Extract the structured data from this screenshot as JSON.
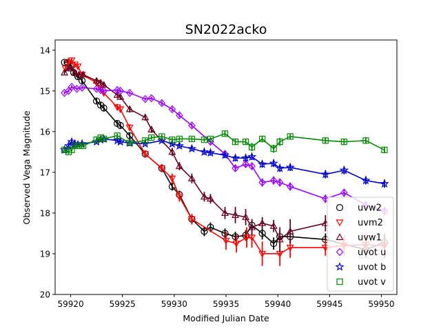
{
  "chart_data": {
    "type": "line",
    "title": "SN2022acko",
    "xlabel": "Modified Julian Date",
    "ylabel": "Observed Vega Magnitude",
    "xlim": [
      59918.5,
      59951.5
    ],
    "ylim": [
      20,
      13.75
    ],
    "y_inverted": true,
    "xticks": [
      59920,
      59925,
      59930,
      59935,
      59940,
      59945,
      59950
    ],
    "yticks": [
      14,
      15,
      16,
      17,
      18,
      19,
      20
    ],
    "legend_position": "lower-right",
    "series": [
      {
        "name": "uvw2",
        "color": "#000000",
        "marker": "circle-open",
        "x": [
          59919.4,
          59919.7,
          59920.0,
          59920.3,
          59920.7,
          59921.1,
          59922.5,
          59922.9,
          59923.2,
          59924.5,
          59924.8,
          59925.7,
          59927.2,
          59928.8,
          59929.8,
          59930.5,
          59931.7,
          59932.9,
          59933.5,
          59934.9,
          59935.9,
          59936.9,
          59937.5,
          59938.5,
          59939.6,
          59940.2,
          59941.2,
          59944.6,
          59948.5,
          59950.3
        ],
        "y": [
          14.3,
          14.3,
          14.4,
          14.55,
          14.65,
          14.75,
          15.25,
          15.35,
          15.42,
          15.8,
          15.85,
          16.1,
          16.55,
          16.9,
          17.35,
          17.55,
          18.15,
          18.45,
          18.35,
          18.5,
          18.58,
          18.55,
          18.3,
          18.5,
          18.75,
          18.58,
          18.58,
          18.65,
          18.9,
          18.72
        ],
        "err": [
          0.05,
          0.05,
          0.06,
          0.06,
          0.06,
          0.07,
          0.08,
          0.08,
          0.08,
          0.08,
          0.08,
          0.08,
          0.08,
          0.09,
          0.1,
          0.1,
          0.1,
          0.12,
          0.12,
          0.12,
          0.12,
          0.13,
          0.15,
          0.15,
          0.15,
          0.15,
          0.15,
          0.15,
          0.2,
          0.2
        ]
      },
      {
        "name": "uvm2",
        "color": "#ff0000",
        "marker": "triangle-down-open",
        "x": [
          59919.5,
          59919.8,
          59920.1,
          59920.4,
          59920.7,
          59921.1,
          59922.5,
          59922.9,
          59923.2,
          59924.5,
          59924.8,
          59925.7,
          59927.2,
          59928.8,
          59929.8,
          59930.5,
          59931.7,
          59935.0,
          59936.0,
          59937.0,
          59937.5,
          59938.5,
          59940.2,
          59941.2,
          59944.6,
          59946.4,
          59948.5,
          59950.3
        ],
        "y": [
          14.45,
          14.3,
          14.25,
          14.35,
          14.4,
          14.6,
          14.8,
          14.95,
          15.05,
          15.4,
          15.45,
          15.9,
          16.55,
          16.9,
          17.15,
          17.6,
          18.15,
          18.68,
          18.75,
          18.6,
          18.6,
          19.0,
          19.0,
          18.85,
          18.85,
          18.8,
          18.78,
          18.8
        ],
        "err": [
          0.05,
          0.05,
          0.05,
          0.05,
          0.06,
          0.06,
          0.07,
          0.07,
          0.07,
          0.08,
          0.08,
          0.08,
          0.09,
          0.1,
          0.12,
          0.12,
          0.13,
          0.22,
          0.22,
          0.25,
          0.25,
          0.3,
          0.3,
          0.25,
          0.2,
          0.25,
          0.25,
          0.3
        ]
      },
      {
        "name": "uvw1",
        "color": "#660022",
        "marker": "triangle-up-open",
        "x": [
          59919.4,
          59919.8,
          59920.1,
          59920.4,
          59920.8,
          59921.2,
          59922.5,
          59922.9,
          59923.2,
          59924.5,
          59924.8,
          59925.7,
          59927.2,
          59927.8,
          59929.8,
          59930.5,
          59931.7,
          59932.9,
          59933.5,
          59934.9,
          59935.9,
          59936.9,
          59937.5,
          59938.5,
          59939.6,
          59940.2,
          59941.2,
          59944.6
        ],
        "y": [
          14.55,
          14.45,
          14.45,
          14.55,
          14.6,
          14.6,
          14.75,
          14.8,
          14.85,
          15.1,
          15.15,
          15.45,
          15.65,
          15.95,
          16.5,
          16.85,
          17.15,
          17.6,
          17.65,
          18.0,
          18.05,
          18.1,
          18.35,
          18.25,
          18.32,
          18.65,
          18.45,
          18.25
        ],
        "err": [
          0.05,
          0.05,
          0.05,
          0.05,
          0.05,
          0.06,
          0.06,
          0.06,
          0.06,
          0.07,
          0.07,
          0.08,
          0.08,
          0.08,
          0.1,
          0.1,
          0.12,
          0.12,
          0.12,
          0.15,
          0.2,
          0.2,
          0.2,
          0.15,
          0.15,
          0.3,
          0.3,
          0.2
        ]
      },
      {
        "name": "uvot u",
        "color": "#9900ff",
        "marker": "diamond-open",
        "x": [
          59919.4,
          59919.8,
          59920.1,
          59920.6,
          59921.1,
          59922.5,
          59922.9,
          59923.2,
          59924.5,
          59924.8,
          59925.7,
          59927.2,
          59927.8,
          59928.8,
          59929.8,
          59930.5,
          59931.7,
          59933.5,
          59934.9,
          59935.9,
          59936.9,
          59937.5,
          59938.5,
          59939.6,
          59940.2,
          59941.2,
          59944.6,
          59946.4,
          59948.5,
          59950.3
        ],
        "y": [
          15.05,
          15.0,
          14.9,
          14.95,
          14.92,
          14.95,
          14.98,
          15.0,
          14.98,
          15.0,
          15.05,
          15.2,
          15.18,
          15.3,
          15.45,
          15.6,
          15.85,
          16.25,
          16.55,
          16.9,
          16.8,
          16.85,
          17.25,
          17.2,
          17.25,
          17.35,
          17.65,
          17.5,
          17.8,
          17.95
        ],
        "err": [
          0.04,
          0.04,
          0.04,
          0.04,
          0.04,
          0.04,
          0.04,
          0.04,
          0.04,
          0.04,
          0.04,
          0.04,
          0.04,
          0.05,
          0.05,
          0.05,
          0.05,
          0.06,
          0.07,
          0.08,
          0.08,
          0.09,
          0.1,
          0.1,
          0.1,
          0.1,
          0.1,
          0.1,
          0.1,
          0.1
        ]
      },
      {
        "name": "uvot b",
        "color": "#0000cc",
        "marker": "star-open",
        "x": [
          59919.4,
          59919.8,
          59920.1,
          59920.4,
          59920.7,
          59921.1,
          59922.5,
          59922.9,
          59923.2,
          59924.5,
          59924.8,
          59925.7,
          59927.2,
          59928.8,
          59929.8,
          59930.5,
          59931.7,
          59932.9,
          59933.5,
          59934.9,
          59935.9,
          59936.9,
          59937.5,
          59938.5,
          59939.6,
          59940.2,
          59941.2,
          59944.6,
          59946.4,
          59948.5,
          59950.3
        ],
        "y": [
          16.45,
          16.35,
          16.25,
          16.3,
          16.32,
          16.3,
          16.25,
          16.2,
          16.18,
          16.22,
          16.25,
          16.28,
          16.3,
          16.22,
          16.3,
          16.35,
          16.42,
          16.5,
          16.52,
          16.58,
          16.65,
          16.65,
          16.62,
          16.8,
          16.78,
          16.9,
          16.88,
          17.05,
          16.95,
          17.2,
          17.28
        ],
        "err": [
          0.05,
          0.05,
          0.05,
          0.05,
          0.05,
          0.05,
          0.05,
          0.05,
          0.05,
          0.05,
          0.05,
          0.05,
          0.05,
          0.05,
          0.06,
          0.06,
          0.06,
          0.07,
          0.07,
          0.07,
          0.08,
          0.08,
          0.08,
          0.09,
          0.09,
          0.09,
          0.09,
          0.1,
          0.1,
          0.1,
          0.1
        ]
      },
      {
        "name": "uvot v",
        "color": "#008800",
        "marker": "square-open",
        "x": [
          59919.4,
          59919.8,
          59920.1,
          59920.4,
          59920.8,
          59921.2,
          59922.5,
          59922.9,
          59923.2,
          59924.5,
          59925.7,
          59927.2,
          59927.8,
          59928.8,
          59929.8,
          59930.5,
          59931.7,
          59932.9,
          59933.5,
          59934.9,
          59935.9,
          59936.9,
          59937.5,
          59938.5,
          59939.6,
          59940.2,
          59941.2,
          59944.6,
          59946.4,
          59948.5,
          59950.3
        ],
        "y": [
          16.45,
          16.5,
          16.45,
          16.35,
          16.35,
          16.35,
          16.2,
          16.15,
          16.18,
          16.1,
          16.28,
          16.22,
          16.15,
          16.12,
          16.2,
          16.18,
          16.18,
          16.2,
          16.18,
          16.05,
          16.25,
          16.25,
          16.38,
          16.18,
          16.42,
          16.25,
          16.12,
          16.22,
          16.25,
          16.22,
          16.45
        ],
        "err": [
          0.05,
          0.05,
          0.05,
          0.05,
          0.05,
          0.05,
          0.05,
          0.05,
          0.05,
          0.05,
          0.05,
          0.05,
          0.05,
          0.05,
          0.05,
          0.05,
          0.05,
          0.05,
          0.05,
          0.06,
          0.08,
          0.08,
          0.1,
          0.08,
          0.1,
          0.1,
          0.06,
          0.08,
          0.08,
          0.08,
          0.08
        ]
      }
    ]
  }
}
